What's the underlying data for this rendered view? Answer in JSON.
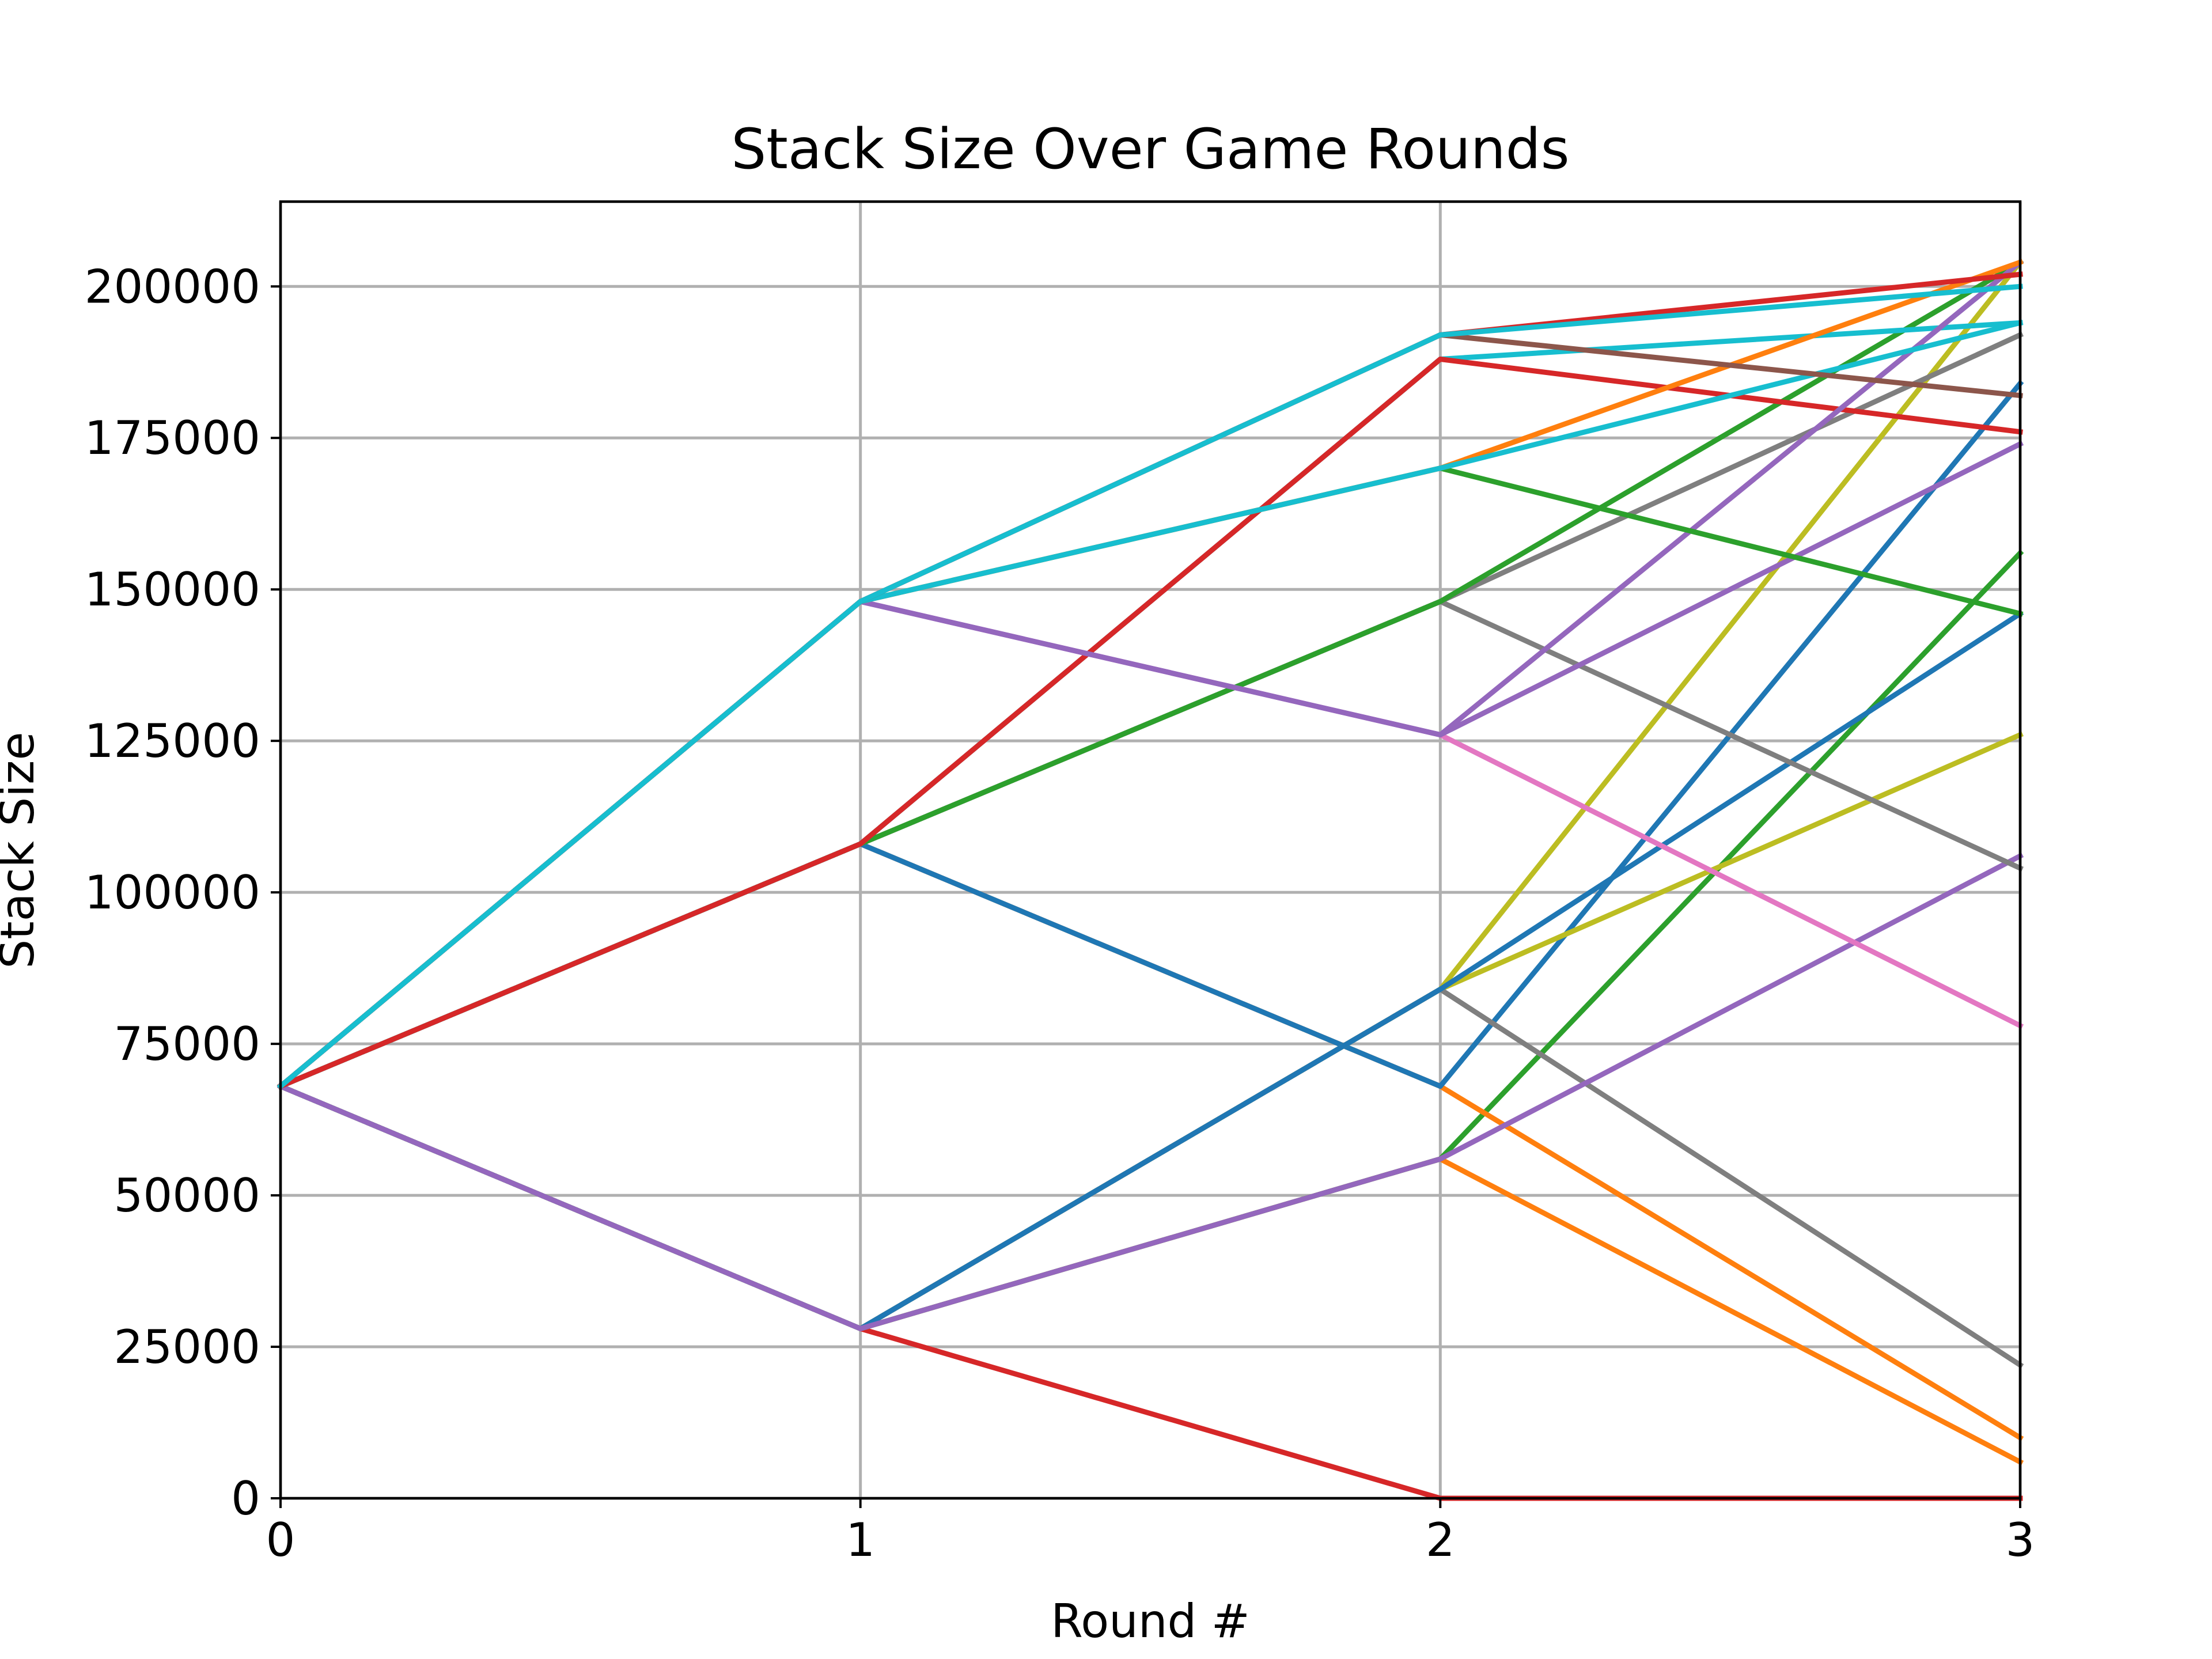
{
  "chart_data": {
    "type": "line",
    "title": "Stack Size Over Game Rounds",
    "xlabel": "Round #",
    "ylabel": "Stack Size",
    "xlim": [
      0,
      3
    ],
    "ylim": [
      0,
      214000
    ],
    "xticks": [
      0,
      1,
      2,
      3
    ],
    "xtick_labels": [
      "0",
      "1",
      "2",
      "3"
    ],
    "yticks": [
      0,
      25000,
      50000,
      75000,
      100000,
      125000,
      150000,
      175000,
      200000
    ],
    "ytick_labels": [
      "0",
      "25000",
      "50000",
      "75000",
      "100000",
      "125000",
      "150000",
      "175000",
      "200000"
    ],
    "grid": true,
    "legend": "none",
    "series": [
      {
        "color": "#d62728",
        "x": [
          0,
          1,
          2,
          3
        ],
        "y": [
          68000,
          28000,
          0,
          0
        ]
      },
      {
        "color": "#ff7f0e",
        "x": [
          0,
          1,
          2,
          3
        ],
        "y": [
          68000,
          28000,
          56000,
          6000
        ]
      },
      {
        "color": "#2ca02c",
        "x": [
          0,
          1,
          2,
          3
        ],
        "y": [
          68000,
          28000,
          56000,
          156000
        ]
      },
      {
        "color": "#ff7f0e",
        "x": [
          0,
          1,
          2,
          3
        ],
        "y": [
          68000,
          108000,
          68000,
          10000
        ]
      },
      {
        "color": "#1f77b4",
        "x": [
          0,
          1,
          2,
          3
        ],
        "y": [
          68000,
          108000,
          68000,
          184000
        ]
      },
      {
        "color": "#bcbd22",
        "x": [
          0,
          1,
          2,
          3
        ],
        "y": [
          68000,
          28000,
          84000,
          126000
        ]
      },
      {
        "color": "#bcbd22",
        "x": [
          0,
          1,
          2,
          3
        ],
        "y": [
          68000,
          28000,
          84000,
          204000
        ]
      },
      {
        "color": "#7f7f7f",
        "x": [
          0,
          1,
          2,
          3
        ],
        "y": [
          68000,
          28000,
          84000,
          22000
        ]
      },
      {
        "color": "#1f77b4",
        "x": [
          0,
          1,
          2,
          3
        ],
        "y": [
          68000,
          28000,
          84000,
          146000
        ]
      },
      {
        "color": "#9467bd",
        "x": [
          0,
          1,
          2,
          3
        ],
        "y": [
          68000,
          28000,
          56000,
          106000
        ]
      },
      {
        "color": "#7f7f7f",
        "x": [
          0,
          1,
          2,
          3
        ],
        "y": [
          68000,
          108000,
          148000,
          104000
        ]
      },
      {
        "color": "#7f7f7f",
        "x": [
          0,
          1,
          2,
          3
        ],
        "y": [
          68000,
          108000,
          148000,
          192000
        ]
      },
      {
        "color": "#2ca02c",
        "x": [
          0,
          1,
          2,
          3
        ],
        "y": [
          68000,
          108000,
          148000,
          204000
        ]
      },
      {
        "color": "#17becf",
        "x": [
          0,
          1,
          2,
          3
        ],
        "y": [
          68000,
          108000,
          188000,
          194000
        ]
      },
      {
        "color": "#d62728",
        "x": [
          0,
          1,
          2,
          3
        ],
        "y": [
          68000,
          108000,
          188000,
          176000
        ]
      },
      {
        "color": "#e377c2",
        "x": [
          0,
          1,
          2,
          3
        ],
        "y": [
          68000,
          148000,
          126000,
          78000
        ]
      },
      {
        "color": "#9467bd",
        "x": [
          0,
          1,
          2,
          3
        ],
        "y": [
          68000,
          148000,
          126000,
          174000
        ]
      },
      {
        "color": "#9467bd",
        "x": [
          0,
          1,
          2,
          3
        ],
        "y": [
          68000,
          148000,
          126000,
          204000
        ]
      },
      {
        "color": "#2ca02c",
        "x": [
          0,
          1,
          2,
          3
        ],
        "y": [
          68000,
          148000,
          170000,
          146000
        ]
      },
      {
        "color": "#ff7f0e",
        "x": [
          0,
          1,
          2,
          3
        ],
        "y": [
          68000,
          148000,
          170000,
          204000
        ]
      },
      {
        "color": "#17becf",
        "x": [
          0,
          1,
          2,
          3
        ],
        "y": [
          68000,
          148000,
          170000,
          194000
        ]
      },
      {
        "color": "#8c564b",
        "x": [
          0,
          1,
          2,
          3
        ],
        "y": [
          68000,
          148000,
          192000,
          182000
        ]
      },
      {
        "color": "#d62728",
        "x": [
          0,
          1,
          2,
          3
        ],
        "y": [
          68000,
          148000,
          192000,
          202000
        ]
      },
      {
        "color": "#17becf",
        "x": [
          0,
          1,
          2,
          3
        ],
        "y": [
          68000,
          148000,
          192000,
          200000
        ]
      }
    ]
  }
}
